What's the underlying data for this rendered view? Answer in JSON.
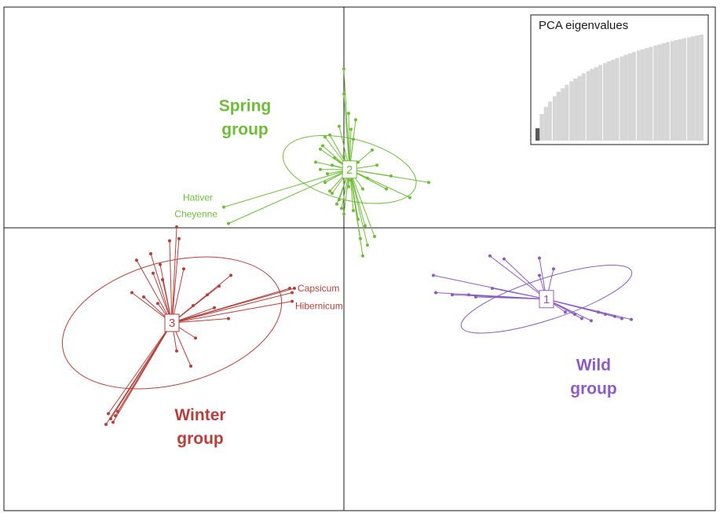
{
  "chart_data": {
    "type": "scatter",
    "description_free": true,
    "colors": {
      "spring": "#6fbc3a",
      "winter": "#b5403b",
      "wild": "#8c5cc2",
      "axis": "#1a1a1a",
      "eig_bar": "#d6d6d6",
      "eig_bar_retained": "#5a5a5a",
      "eig_grid": "#ffffff"
    },
    "groups": [
      {
        "key": "spring",
        "label_line1": "Spring",
        "label_line2": "group",
        "centroid_label": "2",
        "centroid": [
          0.12,
          1.35
        ],
        "ellipse": {
          "rx": 0.65,
          "ry": 1.58,
          "angle_deg": -76
        },
        "points": [
          [
            0.0,
            3.68
          ],
          [
            -0.4,
            2.1
          ],
          [
            -0.45,
            1.9
          ],
          [
            -0.5,
            1.82
          ],
          [
            -0.3,
            2.15
          ],
          [
            -0.1,
            2.35
          ],
          [
            0.15,
            2.28
          ],
          [
            -0.2,
            1.62
          ],
          [
            -0.25,
            1.45
          ],
          [
            0.0,
            1.65
          ],
          [
            0.3,
            1.52
          ],
          [
            0.0,
            1.22
          ],
          [
            0.5,
            1.15
          ],
          [
            0.4,
            0.9
          ],
          [
            0.1,
            0.95
          ],
          [
            -0.3,
            0.85
          ],
          [
            -0.4,
            1.05
          ],
          [
            -0.6,
            1.52
          ],
          [
            -0.5,
            1.35
          ],
          [
            0.2,
            2.05
          ],
          [
            0.6,
            1.8
          ],
          [
            0.7,
            1.45
          ],
          [
            -0.15,
            0.55
          ],
          [
            0.0,
            0.32
          ],
          [
            0.2,
            0.4
          ],
          [
            0.3,
            0.2
          ],
          [
            0.45,
            0.05
          ],
          [
            0.65,
            -0.2
          ],
          [
            0.5,
            -0.4
          ],
          [
            0.4,
            -0.65
          ],
          [
            -0.1,
            0.65
          ],
          [
            0.9,
            0.9
          ],
          [
            1.0,
            1.2
          ],
          [
            1.4,
            0.7
          ],
          [
            1.8,
            1.05
          ],
          [
            -0.25,
            0.8
          ],
          [
            0.1,
            2.65
          ],
          [
            0.0,
            3.1
          ],
          [
            -0.05,
            0.45
          ],
          [
            0.35,
            -0.25
          ],
          [
            0.15,
            1.1
          ],
          [
            -0.35,
            1.25
          ],
          [
            0.25,
            2.5
          ]
        ],
        "cultivars": [
          {
            "name": "Hativer",
            "x": -2.55,
            "y": 0.48
          },
          {
            "name": "Cheyenne",
            "x": -2.45,
            "y": 0.1
          }
        ],
        "label_pos": [
          -2.1,
          2.7
        ]
      },
      {
        "key": "winter",
        "label_line1": "Winter",
        "label_line2": "group",
        "centroid_label": "3",
        "centroid": [
          -3.65,
          -2.2
        ],
        "ellipse": {
          "rx": 1.3,
          "ry": 2.6,
          "angle_deg": -105
        },
        "points": [
          [
            -3.55,
            0.02
          ],
          [
            -3.7,
            -0.3
          ],
          [
            -4.1,
            -0.6
          ],
          [
            -3.9,
            -0.85
          ],
          [
            -4.4,
            -0.75
          ],
          [
            -3.4,
            -0.95
          ],
          [
            -2.4,
            -1.1
          ],
          [
            -2.65,
            -1.35
          ],
          [
            -2.9,
            -1.55
          ],
          [
            -4.25,
            -1.6
          ],
          [
            -4.5,
            -1.5
          ],
          [
            -3.95,
            -1.75
          ],
          [
            -3.2,
            -1.8
          ],
          [
            -2.45,
            -2.1
          ],
          [
            -3.15,
            -2.55
          ],
          [
            -3.55,
            -2.85
          ],
          [
            -3.25,
            -3.2
          ],
          [
            -1.15,
            -1.4
          ],
          [
            -1.1,
            -1.5
          ],
          [
            -5.0,
            -4.3
          ],
          [
            -4.95,
            -4.42
          ],
          [
            -4.85,
            -4.35
          ],
          [
            -4.9,
            -4.5
          ],
          [
            -4.8,
            -4.25
          ],
          [
            -5.05,
            -4.55
          ],
          [
            -3.5,
            -0.25
          ],
          [
            -3.85,
            -1.2
          ],
          [
            -4.05,
            -1.05
          ],
          [
            -2.75,
            -1.85
          ]
        ],
        "cultivars": [
          {
            "name": "Capsicum",
            "x": -1.05,
            "y": -1.4
          },
          {
            "name": "Hibernicum",
            "x": -1.1,
            "y": -1.7
          }
        ],
        "label_pos": [
          -3.05,
          -4.45
        ]
      },
      {
        "key": "wild",
        "label_line1": "Wild",
        "label_line2": "group",
        "centroid_label": "1",
        "centroid": [
          4.3,
          -1.65
        ],
        "ellipse": {
          "rx": 1.9,
          "ry": 0.48,
          "angle_deg": -18
        },
        "points": [
          [
            3.1,
            -0.65
          ],
          [
            3.4,
            -0.72
          ],
          [
            4.15,
            -0.7
          ],
          [
            4.45,
            -0.95
          ],
          [
            4.15,
            -1.1
          ],
          [
            1.9,
            -1.1
          ],
          [
            1.95,
            -1.5
          ],
          [
            2.3,
            -1.55
          ],
          [
            2.65,
            -1.55
          ],
          [
            3.15,
            -1.4
          ],
          [
            5.4,
            -1.95
          ],
          [
            5.55,
            -2.0
          ],
          [
            5.75,
            -2.05
          ],
          [
            5.9,
            -2.1
          ],
          [
            6.1,
            -2.12
          ],
          [
            4.9,
            -2.0
          ],
          [
            5.05,
            -2.1
          ],
          [
            5.25,
            -2.15
          ],
          [
            4.7,
            -1.95
          ],
          [
            2.8,
            -1.6
          ]
        ],
        "cultivars": [],
        "label_pos": [
          5.3,
          -3.3
        ]
      }
    ],
    "inset": {
      "title": "PCA eigenvalues",
      "values": [
        0.7,
        1.5,
        1.9,
        2.2,
        2.5,
        2.75,
        2.95,
        3.15,
        3.35,
        3.5,
        3.65,
        3.8,
        3.92,
        4.05,
        4.15,
        4.27,
        4.37,
        4.47,
        4.57,
        4.66,
        4.75,
        4.84,
        4.92,
        5.0,
        5.08,
        5.15,
        5.22,
        5.29,
        5.36,
        5.42,
        5.49,
        5.55,
        5.61,
        5.67,
        5.72,
        5.78,
        5.83,
        5.88,
        5.93,
        5.98
      ],
      "retained": 1
    }
  }
}
